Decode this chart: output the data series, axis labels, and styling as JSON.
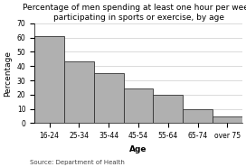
{
  "title": "Percentage of men spending at least one hour per week\nparticipating in sports or exercise, by age",
  "categories": [
    "16-24",
    "25-34",
    "35-44",
    "45-54",
    "55-64",
    "65-74",
    "over 75"
  ],
  "values": [
    61,
    43,
    35,
    24,
    20,
    10,
    5
  ],
  "bar_color": "#b0b0b0",
  "bar_edge_color": "#333333",
  "xlabel": "Age",
  "ylabel": "Percentage",
  "ylim": [
    0,
    70
  ],
  "yticks": [
    0,
    10,
    20,
    30,
    40,
    50,
    60,
    70
  ],
  "source_text": "Source: Department of Health",
  "title_fontsize": 6.5,
  "axis_label_fontsize": 6.5,
  "tick_fontsize": 5.5,
  "source_fontsize": 5,
  "background_color": "#ffffff"
}
